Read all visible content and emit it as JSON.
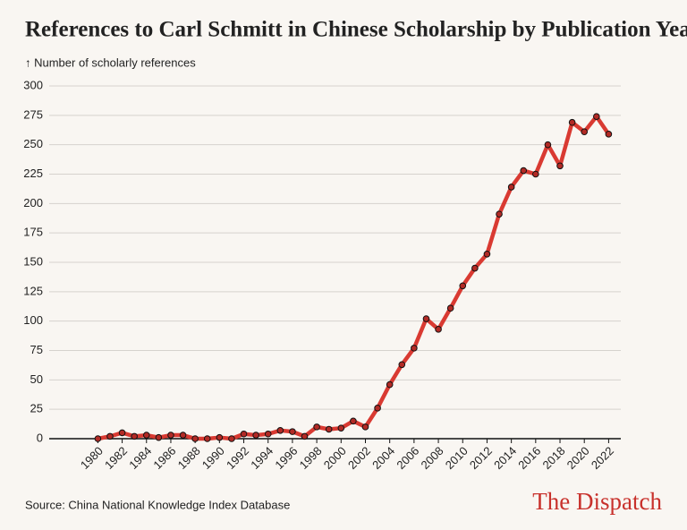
{
  "chart_data": {
    "type": "line",
    "title": "References to Carl Schmitt in Chinese Scholarship by Publication Year",
    "y_label": "↑ Number of scholarly references",
    "source": "Source: China National Knowledge Index Database",
    "brand": "The Dispatch",
    "x": [
      1980,
      1981,
      1982,
      1983,
      1984,
      1985,
      1986,
      1987,
      1988,
      1989,
      1990,
      1991,
      1992,
      1993,
      1994,
      1995,
      1996,
      1997,
      1998,
      1999,
      2000,
      2001,
      2002,
      2003,
      2004,
      2005,
      2006,
      2007,
      2008,
      2009,
      2010,
      2011,
      2012,
      2013,
      2014,
      2015,
      2016,
      2017,
      2018,
      2019,
      2020,
      2021,
      2022
    ],
    "series": [
      {
        "name": "References",
        "color": "#d93a32",
        "values": [
          0,
          2,
          5,
          2,
          3,
          1,
          3,
          3,
          0,
          0,
          1,
          0,
          4,
          3,
          4,
          7,
          6,
          2,
          10,
          8,
          9,
          15,
          10,
          26,
          46,
          63,
          77,
          102,
          93,
          111,
          130,
          145,
          157,
          191,
          214,
          228,
          225,
          250,
          232,
          269,
          261,
          274,
          259
        ]
      }
    ],
    "xlim": [
      1976,
      2023
    ],
    "xticks": [
      1980,
      1982,
      1984,
      1986,
      1988,
      1990,
      1992,
      1994,
      1996,
      1998,
      2000,
      2002,
      2004,
      2006,
      2008,
      2010,
      2012,
      2014,
      2016,
      2018,
      2020,
      2022
    ],
    "ylim": [
      0,
      300
    ],
    "yticks": [
      0,
      25,
      50,
      75,
      100,
      125,
      150,
      175,
      200,
      225,
      250,
      275,
      300
    ],
    "grid": true
  }
}
